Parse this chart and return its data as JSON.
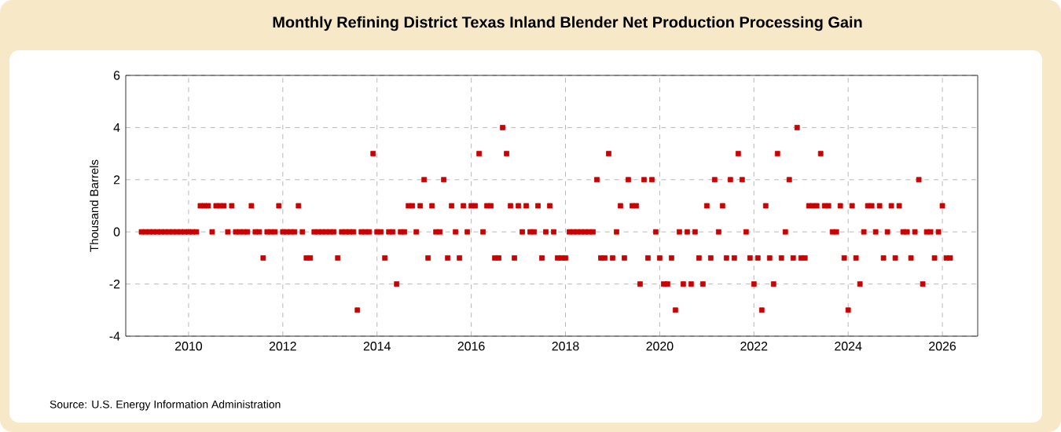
{
  "chart_data": {
    "type": "scatter",
    "title": "Monthly Refining District Texas Inland Blender Net Production Processing Gain",
    "ylabel": "Thousand Barrels",
    "annotations": [
      "Source: U.S. Energy Information Administration"
    ],
    "x": [
      "2009-01",
      "2009-02",
      "2009-03",
      "2009-04",
      "2009-05",
      "2009-06",
      "2009-07",
      "2009-08",
      "2009-09",
      "2009-10",
      "2009-11",
      "2009-12",
      "2010-01",
      "2010-02",
      "2010-03",
      "2010-04",
      "2010-05",
      "2010-06",
      "2010-07",
      "2010-08",
      "2010-09",
      "2010-10",
      "2010-11",
      "2010-12",
      "2011-01",
      "2011-02",
      "2011-03",
      "2011-04",
      "2011-05",
      "2011-06",
      "2011-07",
      "2011-08",
      "2011-09",
      "2011-10",
      "2011-11",
      "2011-12",
      "2012-01",
      "2012-02",
      "2012-03",
      "2012-04",
      "2012-05",
      "2012-06",
      "2012-07",
      "2012-08",
      "2012-09",
      "2012-10",
      "2012-11",
      "2012-12",
      "2013-01",
      "2013-02",
      "2013-03",
      "2013-04",
      "2013-05",
      "2013-06",
      "2013-07",
      "2013-08",
      "2013-09",
      "2013-10",
      "2013-11",
      "2013-12",
      "2014-01",
      "2014-02",
      "2014-03",
      "2014-04",
      "2014-05",
      "2014-06",
      "2014-07",
      "2014-08",
      "2014-09",
      "2014-10",
      "2014-11",
      "2014-12",
      "2015-01",
      "2015-02",
      "2015-03",
      "2015-04",
      "2015-05",
      "2015-06",
      "2015-07",
      "2015-08",
      "2015-09",
      "2015-10",
      "2015-11",
      "2015-12",
      "2016-01",
      "2016-02",
      "2016-03",
      "2016-04",
      "2016-05",
      "2016-06",
      "2016-07",
      "2016-08",
      "2016-09",
      "2016-10",
      "2016-11",
      "2016-12",
      "2017-01",
      "2017-02",
      "2017-03",
      "2017-04",
      "2017-05",
      "2017-06",
      "2017-07",
      "2017-08",
      "2017-09",
      "2017-10",
      "2017-11",
      "2017-12",
      "2018-01",
      "2018-02",
      "2018-03",
      "2018-04",
      "2018-05",
      "2018-06",
      "2018-07",
      "2018-08",
      "2018-09",
      "2018-10",
      "2018-11",
      "2018-12",
      "2019-01",
      "2019-02",
      "2019-03",
      "2019-04",
      "2019-05",
      "2019-06",
      "2019-07",
      "2019-08",
      "2019-09",
      "2019-10",
      "2019-11",
      "2019-12",
      "2020-01",
      "2020-02",
      "2020-03",
      "2020-04",
      "2020-05",
      "2020-06",
      "2020-07",
      "2020-08",
      "2020-09",
      "2020-10",
      "2020-11",
      "2020-12",
      "2021-01",
      "2021-02",
      "2021-03",
      "2021-04",
      "2021-05",
      "2021-06",
      "2021-07",
      "2021-08",
      "2021-09",
      "2021-10",
      "2021-11",
      "2021-12",
      "2022-01",
      "2022-02",
      "2022-03",
      "2022-04",
      "2022-05",
      "2022-06",
      "2022-07",
      "2022-08",
      "2022-09",
      "2022-10",
      "2022-11",
      "2022-12",
      "2023-01",
      "2023-02",
      "2023-03",
      "2023-04",
      "2023-05",
      "2023-06",
      "2023-07",
      "2023-08",
      "2023-09",
      "2023-10",
      "2023-11",
      "2023-12",
      "2024-01",
      "2024-02",
      "2024-03",
      "2024-04",
      "2024-05",
      "2024-06",
      "2024-07",
      "2024-08",
      "2024-09",
      "2024-10",
      "2024-11",
      "2024-12",
      "2025-01",
      "2025-02",
      "2025-03",
      "2025-04",
      "2025-05",
      "2025-06",
      "2025-07",
      "2025-08",
      "2025-09",
      "2025-10",
      "2025-11",
      "2025-12",
      "2026-01",
      "2026-02",
      "2026-03"
    ],
    "values": [
      0,
      0,
      0,
      0,
      0,
      0,
      0,
      0,
      0,
      0,
      0,
      0,
      0,
      0,
      0,
      1,
      1,
      1,
      0,
      1,
      1,
      1,
      0,
      1,
      0,
      0,
      0,
      0,
      1,
      0,
      0,
      -1,
      0,
      0,
      0,
      1,
      0,
      0,
      0,
      0,
      1,
      0,
      -1,
      -1,
      0,
      0,
      0,
      0,
      0,
      0,
      -1,
      0,
      0,
      0,
      0,
      -3,
      0,
      0,
      0,
      3,
      0,
      0,
      -1,
      0,
      0,
      -2,
      0,
      0,
      1,
      1,
      0,
      1,
      2,
      -1,
      1,
      0,
      0,
      2,
      -1,
      1,
      0,
      -1,
      1,
      0,
      1,
      1,
      3,
      0,
      1,
      1,
      -1,
      -1,
      4,
      3,
      1,
      -1,
      1,
      0,
      1,
      0,
      0,
      1,
      -1,
      0,
      1,
      0,
      -1,
      -1,
      -1,
      0,
      0,
      0,
      0,
      0,
      0,
      0,
      2,
      -1,
      -1,
      3,
      -1,
      0,
      1,
      -1,
      2,
      1,
      1,
      -2,
      2,
      -1,
      2,
      0,
      -1,
      -2,
      -2,
      -1,
      -3,
      0,
      -2,
      0,
      -2,
      0,
      -1,
      -2,
      1,
      -1,
      2,
      0,
      1,
      -1,
      2,
      -1,
      3,
      2,
      0,
      -1,
      -2,
      -1,
      -3,
      1,
      -1,
      -2,
      3,
      -1,
      0,
      2,
      -1,
      4,
      -1,
      -1,
      1,
      1,
      1,
      3,
      1,
      1,
      0,
      0,
      1,
      -1,
      -3,
      1,
      -1,
      -2,
      0,
      1,
      1,
      0,
      1,
      -1,
      0,
      1,
      -1,
      1,
      0,
      0,
      -1,
      0,
      2,
      -2,
      0,
      0,
      -1,
      0,
      1,
      -1,
      -1
    ],
    "color": "#cc0000",
    "marker": "square",
    "xlim": [
      "2008-09",
      "2026-10"
    ],
    "xticks": [
      "2010",
      "2012",
      "2014",
      "2016",
      "2018",
      "2020",
      "2022",
      "2024",
      "2026"
    ],
    "ylim": [
      -4,
      6
    ],
    "yticks": [
      -4,
      -2,
      0,
      2,
      4,
      6
    ],
    "grid": true
  }
}
